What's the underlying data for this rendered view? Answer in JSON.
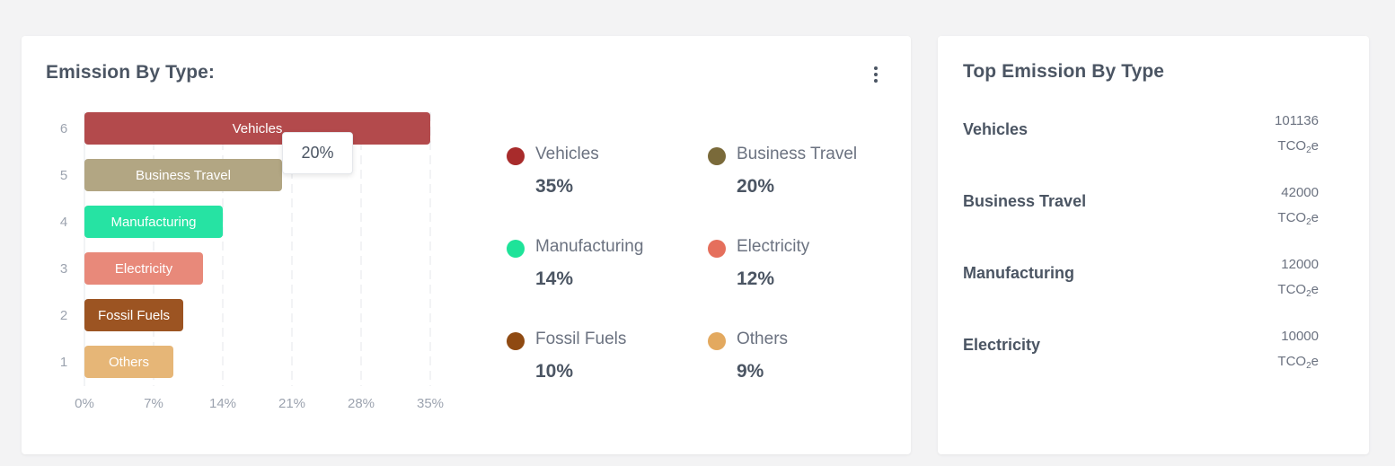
{
  "left_card": {
    "title": "Emission By Type:",
    "menu_icon": "more-vertical-icon"
  },
  "tooltip": {
    "value": "20%"
  },
  "chart_data": {
    "type": "bar",
    "orientation": "horizontal",
    "title": "Emission By Type:",
    "xlabel": "",
    "ylabel": "",
    "xlim": [
      0,
      35
    ],
    "x_ticks": [
      "0%",
      "7%",
      "14%",
      "21%",
      "28%",
      "35%"
    ],
    "y_ticks": [
      "6",
      "5",
      "4",
      "3",
      "2",
      "1"
    ],
    "grid": "vertical-dashed",
    "categories": [
      "Vehicles",
      "Business Travel",
      "Manufacturing",
      "Electricity",
      "Fossil Fuels",
      "Others"
    ],
    "values": [
      35,
      20,
      14,
      12,
      10,
      9
    ],
    "colors": [
      "#b34a4c",
      "#b2a683",
      "#26e3a3",
      "#e8897a",
      "#9c5422",
      "#e6b677"
    ]
  },
  "legend": [
    {
      "name": "Vehicles",
      "value": "35%",
      "color": "#a82b2b"
    },
    {
      "name": "Business Travel",
      "value": "20%",
      "color": "#7a6a3a"
    },
    {
      "name": "Manufacturing",
      "value": "14%",
      "color": "#1ee399"
    },
    {
      "name": "Electricity",
      "value": "12%",
      "color": "#e56f5c"
    },
    {
      "name": "Fossil Fuels",
      "value": "10%",
      "color": "#8f4a12"
    },
    {
      "name": "Others",
      "value": "9%",
      "color": "#e3a95f"
    }
  ],
  "right_card": {
    "title": "Top Emission By Type",
    "unit_main": "TCO",
    "unit_sub": "2",
    "unit_tail": "e",
    "rows": [
      {
        "name": "Vehicles",
        "value": "101136"
      },
      {
        "name": "Business Travel",
        "value": "42000"
      },
      {
        "name": "Manufacturing",
        "value": "12000"
      },
      {
        "name": "Electricity",
        "value": "10000"
      }
    ]
  }
}
